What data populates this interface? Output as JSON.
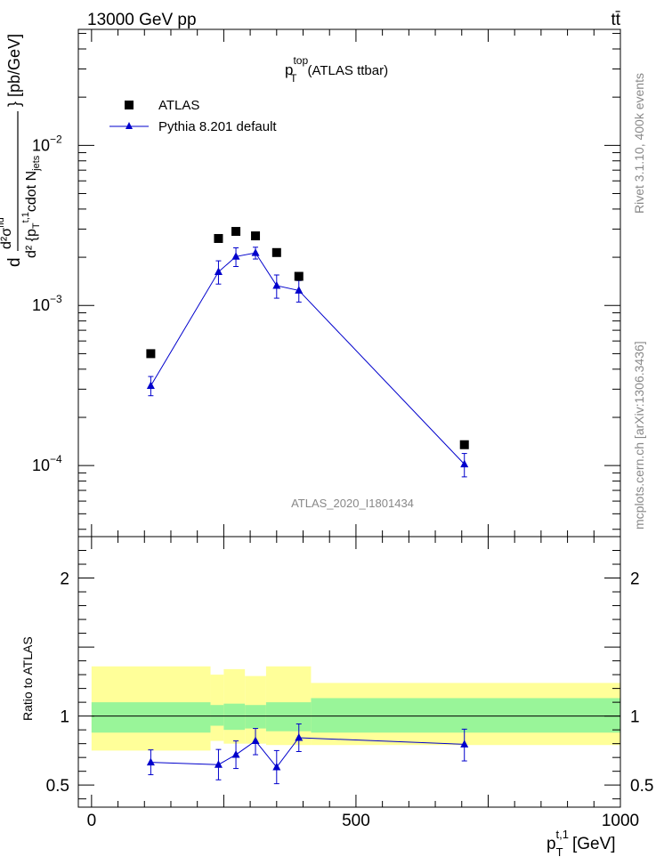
{
  "header": {
    "left": "13000 GeV pp",
    "right": "tt̄",
    "title_main": "p",
    "title_sup": "top",
    "title_sub": "T",
    "title_suffix": "(ATLAS ttbar)",
    "watermark": "ATLAS_2020_I1801434"
  },
  "side_labels": {
    "rivet": "Rivet 3.1.10,  400k events",
    "mcplots": "mcplots.cern.ch [arXiv:1306.3436]"
  },
  "axes": {
    "y_main_label": "d²σ^fid / d²{p_T^{t,1} cdot N_jets} [pb/GeV]",
    "y_main_num": "d²σ",
    "y_main_num_sup": "fid",
    "y_main_den": "d² {p",
    "y_main_den_sub": "T",
    "y_main_den_sup": "t,1",
    "y_main_den_rest": "cdot N",
    "y_main_den_sub2": "jets",
    "y_main_unit": "} [pb/GeV]",
    "y_ratio_label": "Ratio to ATLAS",
    "x_label": "p",
    "x_label_sub": "T",
    "x_label_sup": "t,1",
    "x_label_unit": "[GeV]",
    "main_ticks": [
      {
        "label": "10",
        "sup": "−2",
        "value": 0.01
      },
      {
        "label": "10",
        "sup": "−3",
        "value": 0.001
      },
      {
        "label": "10",
        "sup": "−4",
        "value": 0.0001
      }
    ],
    "ratio_ticks": [
      {
        "label": "2",
        "value": 2
      },
      {
        "label": "1",
        "value": 1
      },
      {
        "label": "0.5",
        "value": 0.5
      }
    ],
    "x_ticks": [
      {
        "label": "0",
        "value": 0
      },
      {
        "label": "500",
        "value": 500
      },
      {
        "label": "1000",
        "value": 1000
      }
    ]
  },
  "legend": [
    {
      "label": "ATLAS",
      "marker": "square",
      "color": "#000000"
    },
    {
      "label": "Pythia 8.201 default",
      "marker": "triangle",
      "color": "#0000cc"
    }
  ],
  "chart_data": [
    {
      "type": "scatter",
      "title": "p_T^top (ATLAS ttbar)",
      "xlabel": "p_T^{t,1} [GeV]",
      "ylabel": "d²σ^fid / d²{p_T^{t,1} cdot N_jets} [pb/GeV]",
      "xlim": [
        -25,
        1000
      ],
      "ylim": [
        3.6e-05,
        0.053
      ],
      "yscale": "log",
      "legend_position": "top-left",
      "x": [
        112,
        240,
        273,
        310,
        350,
        392,
        705
      ],
      "series": [
        {
          "name": "ATLAS",
          "marker": "square",
          "color": "#000000",
          "values": [
            0.0005,
            0.00262,
            0.0029,
            0.00272,
            0.00214,
            0.00152,
            0.000135
          ]
        },
        {
          "name": "Pythia 8.201 default",
          "marker": "triangle",
          "color": "#0000cc",
          "values": [
            0.000315,
            0.00162,
            0.00202,
            0.00213,
            0.00133,
            0.00124,
            0.000102
          ],
          "err_lo": [
            4.2e-05,
            0.00026,
            0.00027,
            0.00018,
            0.00022,
            0.00019,
            1.7e-05
          ],
          "err_hi": [
            4.5e-05,
            0.00028,
            0.00027,
            0.00018,
            0.00022,
            0.00019,
            1.7e-05
          ]
        }
      ]
    },
    {
      "type": "line",
      "ylabel": "Ratio to ATLAS",
      "xlabel": "p_T^{t,1} [GeV]",
      "xlim": [
        -25,
        1000
      ],
      "ylim": [
        0.34,
        2.3
      ],
      "reference_line": 1.0,
      "bands": {
        "edges": [
          0,
          225,
          250,
          290,
          330,
          415,
          1000
        ],
        "inner_lo": [
          0.88,
          0.93,
          0.9,
          0.91,
          0.89,
          0.88
        ],
        "inner_hi": [
          1.1,
          1.08,
          1.09,
          1.08,
          1.1,
          1.13
        ],
        "outer_lo": [
          0.75,
          0.82,
          0.8,
          0.8,
          0.79,
          0.79
        ],
        "outer_hi": [
          1.36,
          1.3,
          1.34,
          1.29,
          1.36,
          1.24
        ],
        "inner_color": "#99f599",
        "outer_color": "#ffff99"
      },
      "x": [
        112,
        240,
        273,
        310,
        350,
        392,
        705
      ],
      "series": [
        {
          "name": "Pythia 8.201 default",
          "color": "#0000cc",
          "values": [
            0.665,
            0.648,
            0.72,
            0.82,
            0.63,
            0.843,
            0.795
          ],
          "err_lo": [
            0.09,
            0.11,
            0.1,
            0.1,
            0.12,
            0.1,
            0.12
          ],
          "err_hi": [
            0.09,
            0.11,
            0.1,
            0.09,
            0.12,
            0.1,
            0.11
          ]
        }
      ]
    }
  ]
}
